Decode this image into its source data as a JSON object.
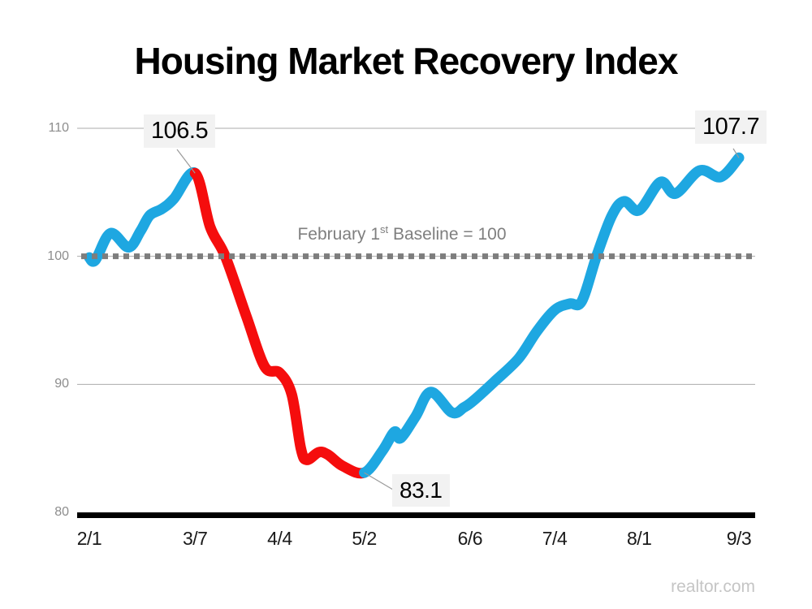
{
  "title": "Housing Market Recovery Index",
  "watermark": "realtor.com",
  "chart_data": {
    "type": "line",
    "title": "Housing Market Recovery Index",
    "ylim": [
      80,
      110
    ],
    "y_ticks": [
      {
        "label": "110",
        "value": 110
      },
      {
        "label": "100",
        "value": 100
      },
      {
        "label": "90",
        "value": 90
      },
      {
        "label": "80",
        "value": 80
      }
    ],
    "gridline_values": [
      110,
      100,
      90
    ],
    "x_ticks": [
      {
        "label": "2/1",
        "d": 0
      },
      {
        "label": "3/7",
        "d": 35
      },
      {
        "label": "4/4",
        "d": 63
      },
      {
        "label": "5/2",
        "d": 91
      },
      {
        "label": "6/6",
        "d": 126
      },
      {
        "label": "7/4",
        "d": 154
      },
      {
        "label": "8/1",
        "d": 182
      },
      {
        "label": "9/3",
        "d": 215
      }
    ],
    "baseline": {
      "value": 100,
      "label_before_sup": "February 1",
      "label_sup": "st",
      "label_after_sup": " Baseline = 100"
    },
    "colors": {
      "blue": "#1ea7e1",
      "red": "#f50d0d",
      "baseline_dash": "#7d7d7d",
      "gridline": "#ababab",
      "axis": "#000000",
      "leader": "#9a9a9a",
      "callout_bg": "#f2f2f2"
    },
    "red_segment_day_range": [
      35,
      91
    ],
    "points": [
      [
        0,
        99.9
      ],
      [
        2,
        99.7
      ],
      [
        7,
        101.8
      ],
      [
        13,
        100.7
      ],
      [
        17,
        102.0
      ],
      [
        20,
        103.2
      ],
      [
        24,
        103.7
      ],
      [
        28,
        104.5
      ],
      [
        35,
        106.5
      ],
      [
        40,
        102.3
      ],
      [
        45,
        100.0
      ],
      [
        52,
        95.3
      ],
      [
        58,
        91.4
      ],
      [
        63,
        90.9
      ],
      [
        67,
        89.2
      ],
      [
        70,
        85.0
      ],
      [
        72,
        84.1
      ],
      [
        76,
        84.7
      ],
      [
        79,
        84.5
      ],
      [
        84,
        83.6
      ],
      [
        91,
        83.1
      ],
      [
        97,
        84.8
      ],
      [
        101,
        86.3
      ],
      [
        103,
        85.8
      ],
      [
        108,
        87.5
      ],
      [
        113,
        89.4
      ],
      [
        120,
        87.8
      ],
      [
        124,
        88.2
      ],
      [
        127,
        88.7
      ],
      [
        134,
        90.2
      ],
      [
        142,
        92.0
      ],
      [
        148,
        94.1
      ],
      [
        154,
        95.8
      ],
      [
        159,
        96.3
      ],
      [
        163,
        96.5
      ],
      [
        168,
        100.1
      ],
      [
        173,
        103.2
      ],
      [
        177,
        104.3
      ],
      [
        182,
        103.6
      ],
      [
        189,
        105.8
      ],
      [
        194,
        104.9
      ],
      [
        202,
        106.7
      ],
      [
        209,
        106.2
      ],
      [
        215,
        107.7
      ]
    ],
    "annotations": [
      {
        "key": "peak",
        "label": "106.5",
        "d": 35,
        "v": 106.5
      },
      {
        "key": "trough",
        "label": "83.1",
        "d": 91,
        "v": 83.1
      },
      {
        "key": "end",
        "label": "107.7",
        "d": 215,
        "v": 107.7
      }
    ]
  }
}
